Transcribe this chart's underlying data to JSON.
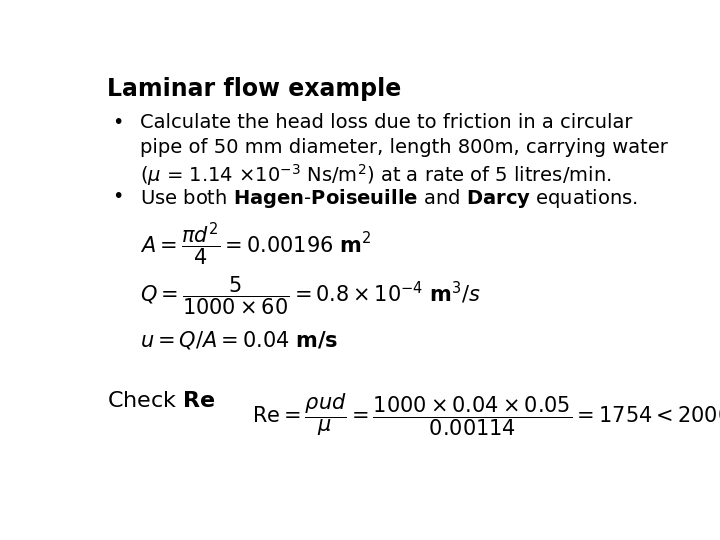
{
  "title": "Laminar flow example",
  "background_color": "#ffffff",
  "text_color": "#000000",
  "fig_width": 7.2,
  "fig_height": 5.4,
  "dpi": 100,
  "fs_title": 17,
  "fs_body": 14,
  "fs_eq": 15
}
